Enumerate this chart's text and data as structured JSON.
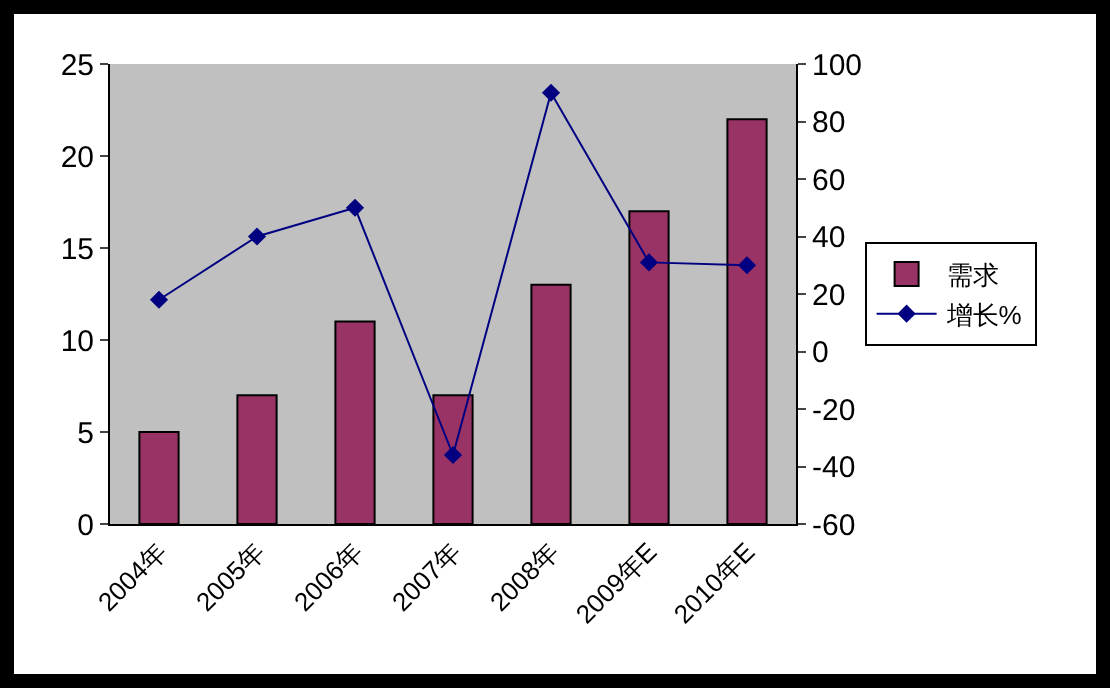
{
  "chart_data": {
    "type": "bar",
    "categories": [
      "2004年",
      "2005年",
      "2006年",
      "2007年",
      "2008年",
      "2009年E",
      "2010年E"
    ],
    "series": [
      {
        "name": "需求",
        "color": "#993366",
        "values": [
          5,
          7,
          11,
          7,
          13,
          17,
          22
        ]
      },
      {
        "name": "增长%",
        "type": "line",
        "axis": "y2",
        "color": "#000080",
        "marker": "diamond",
        "values": [
          18,
          40,
          50,
          -36,
          90,
          31,
          30
        ]
      }
    ],
    "ylim": [
      0,
      25
    ],
    "yticks": [
      0,
      5,
      10,
      15,
      20,
      25
    ],
    "y2lim": [
      -60,
      100
    ],
    "y2ticks": [
      -60,
      -40,
      -20,
      0,
      20,
      40,
      60,
      80,
      100
    ],
    "grid": false,
    "legend": "right"
  }
}
